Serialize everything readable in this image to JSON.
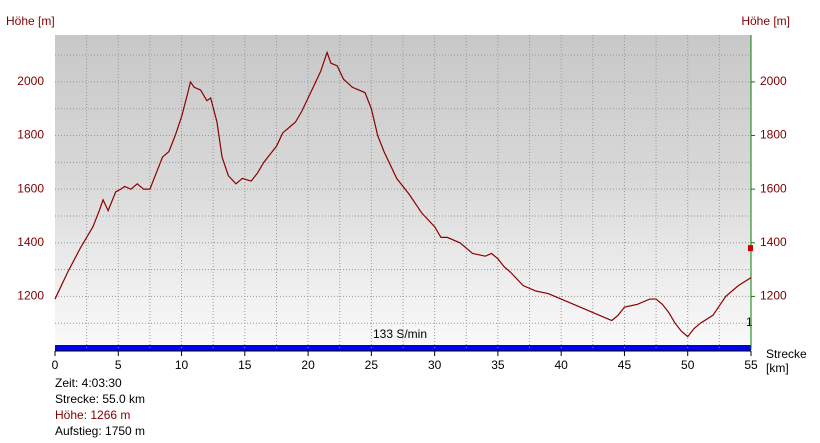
{
  "chart_data": {
    "type": "line",
    "y_axis_label": "Höhe [m]",
    "y2_axis_label": "Höhe [m]",
    "x_axis_label": [
      "Strecke",
      "[km]"
    ],
    "annotation": "133 S/min",
    "side_note": "1",
    "marker_value": 1380,
    "x": [
      0,
      1,
      2,
      3,
      3.5,
      3.8,
      4.2,
      4.8,
      5.2,
      5.5,
      6,
      6.5,
      7,
      7.5,
      8,
      8.5,
      9,
      9.5,
      10,
      10.5,
      10.7,
      11,
      11.5,
      12,
      12.3,
      12.8,
      13.2,
      13.7,
      14.3,
      14.8,
      15.5,
      16,
      16.5,
      17,
      17.5,
      18,
      18.5,
      19,
      19.5,
      20,
      20.5,
      21,
      21.5,
      21.8,
      22.3,
      22.8,
      23.5,
      24,
      24.5,
      25,
      25.5,
      26,
      27,
      28,
      29,
      30,
      30.5,
      31,
      32,
      33,
      34,
      34.5,
      35,
      35.5,
      36,
      37,
      38,
      39,
      40,
      41,
      42,
      43,
      44,
      44.5,
      45,
      46,
      46.5,
      47,
      47.5,
      48,
      48.5,
      49,
      49.5,
      50,
      50.5,
      51,
      52,
      53,
      54,
      55
    ],
    "series": [
      {
        "name": "Höhe",
        "color": "#8b0000",
        "values": [
          1190,
          1290,
          1380,
          1460,
          1520,
          1560,
          1520,
          1590,
          1600,
          1610,
          1600,
          1620,
          1600,
          1600,
          1660,
          1720,
          1740,
          1800,
          1870,
          1960,
          2000,
          1980,
          1970,
          1930,
          1940,
          1850,
          1720,
          1650,
          1620,
          1640,
          1630,
          1660,
          1700,
          1730,
          1760,
          1810,
          1830,
          1850,
          1890,
          1940,
          1990,
          2040,
          2110,
          2070,
          2060,
          2010,
          1980,
          1970,
          1960,
          1900,
          1800,
          1740,
          1640,
          1580,
          1510,
          1460,
          1420,
          1420,
          1400,
          1360,
          1350,
          1360,
          1340,
          1310,
          1290,
          1240,
          1220,
          1210,
          1190,
          1170,
          1150,
          1130,
          1110,
          1130,
          1160,
          1170,
          1180,
          1190,
          1190,
          1170,
          1140,
          1100,
          1070,
          1050,
          1080,
          1100,
          1130,
          1200,
          1240,
          1270
        ]
      }
    ],
    "xlim": [
      0,
      55
    ],
    "xticks": [
      0,
      5,
      10,
      15,
      20,
      25,
      30,
      35,
      40,
      45,
      50,
      55
    ],
    "xgrid": [
      2.5,
      5,
      7.5,
      10,
      12.5,
      15,
      17.5,
      20,
      22.5,
      25,
      27.5,
      30,
      32.5,
      35,
      37.5,
      40,
      42.5,
      45,
      47.5,
      50,
      52.5
    ],
    "ylim": [
      1000,
      2175
    ],
    "yticks": [
      1200,
      1400,
      1600,
      1800,
      2000
    ],
    "ygrid": [
      1100,
      1200,
      1300,
      1400,
      1500,
      1600,
      1700,
      1800,
      1900,
      2000,
      2100
    ],
    "y2lim": [
      1000,
      2175
    ],
    "y2ticks": [
      1200,
      1400,
      1600,
      1800,
      2000
    ]
  },
  "footer": {
    "time": "Zeit: 4:03:30",
    "distance": "Strecke: 55.0 km",
    "height": "Höhe: 1266 m",
    "ascent": "Aufstieg: 1750 m"
  }
}
